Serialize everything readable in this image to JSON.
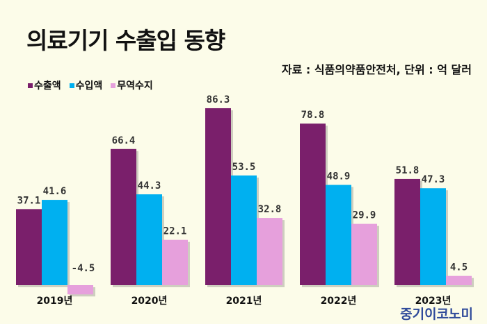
{
  "chart_data": {
    "type": "bar",
    "title": "의료기기 수출입 동향",
    "subtitle": "자료 : 식품의약품안전처, 단위 : 억 달러",
    "categories": [
      "2019년",
      "2020년",
      "2021년",
      "2022년",
      "2023년"
    ],
    "series": [
      {
        "name": "수출액",
        "color": "#7a1f6b",
        "values": [
          37.1,
          66.4,
          86.3,
          78.8,
          51.8
        ]
      },
      {
        "name": "수입액",
        "color": "#00b0f0",
        "values": [
          41.6,
          44.3,
          53.5,
          48.9,
          47.3
        ]
      },
      {
        "name": "무역수지",
        "color": "#e6a0dc",
        "values": [
          -4.5,
          22.1,
          32.8,
          29.9,
          4.5
        ]
      }
    ],
    "legend_position": "top-left",
    "grid": false,
    "ylim": [
      -4.5,
      86.3
    ]
  },
  "brand": "중기이코노미"
}
